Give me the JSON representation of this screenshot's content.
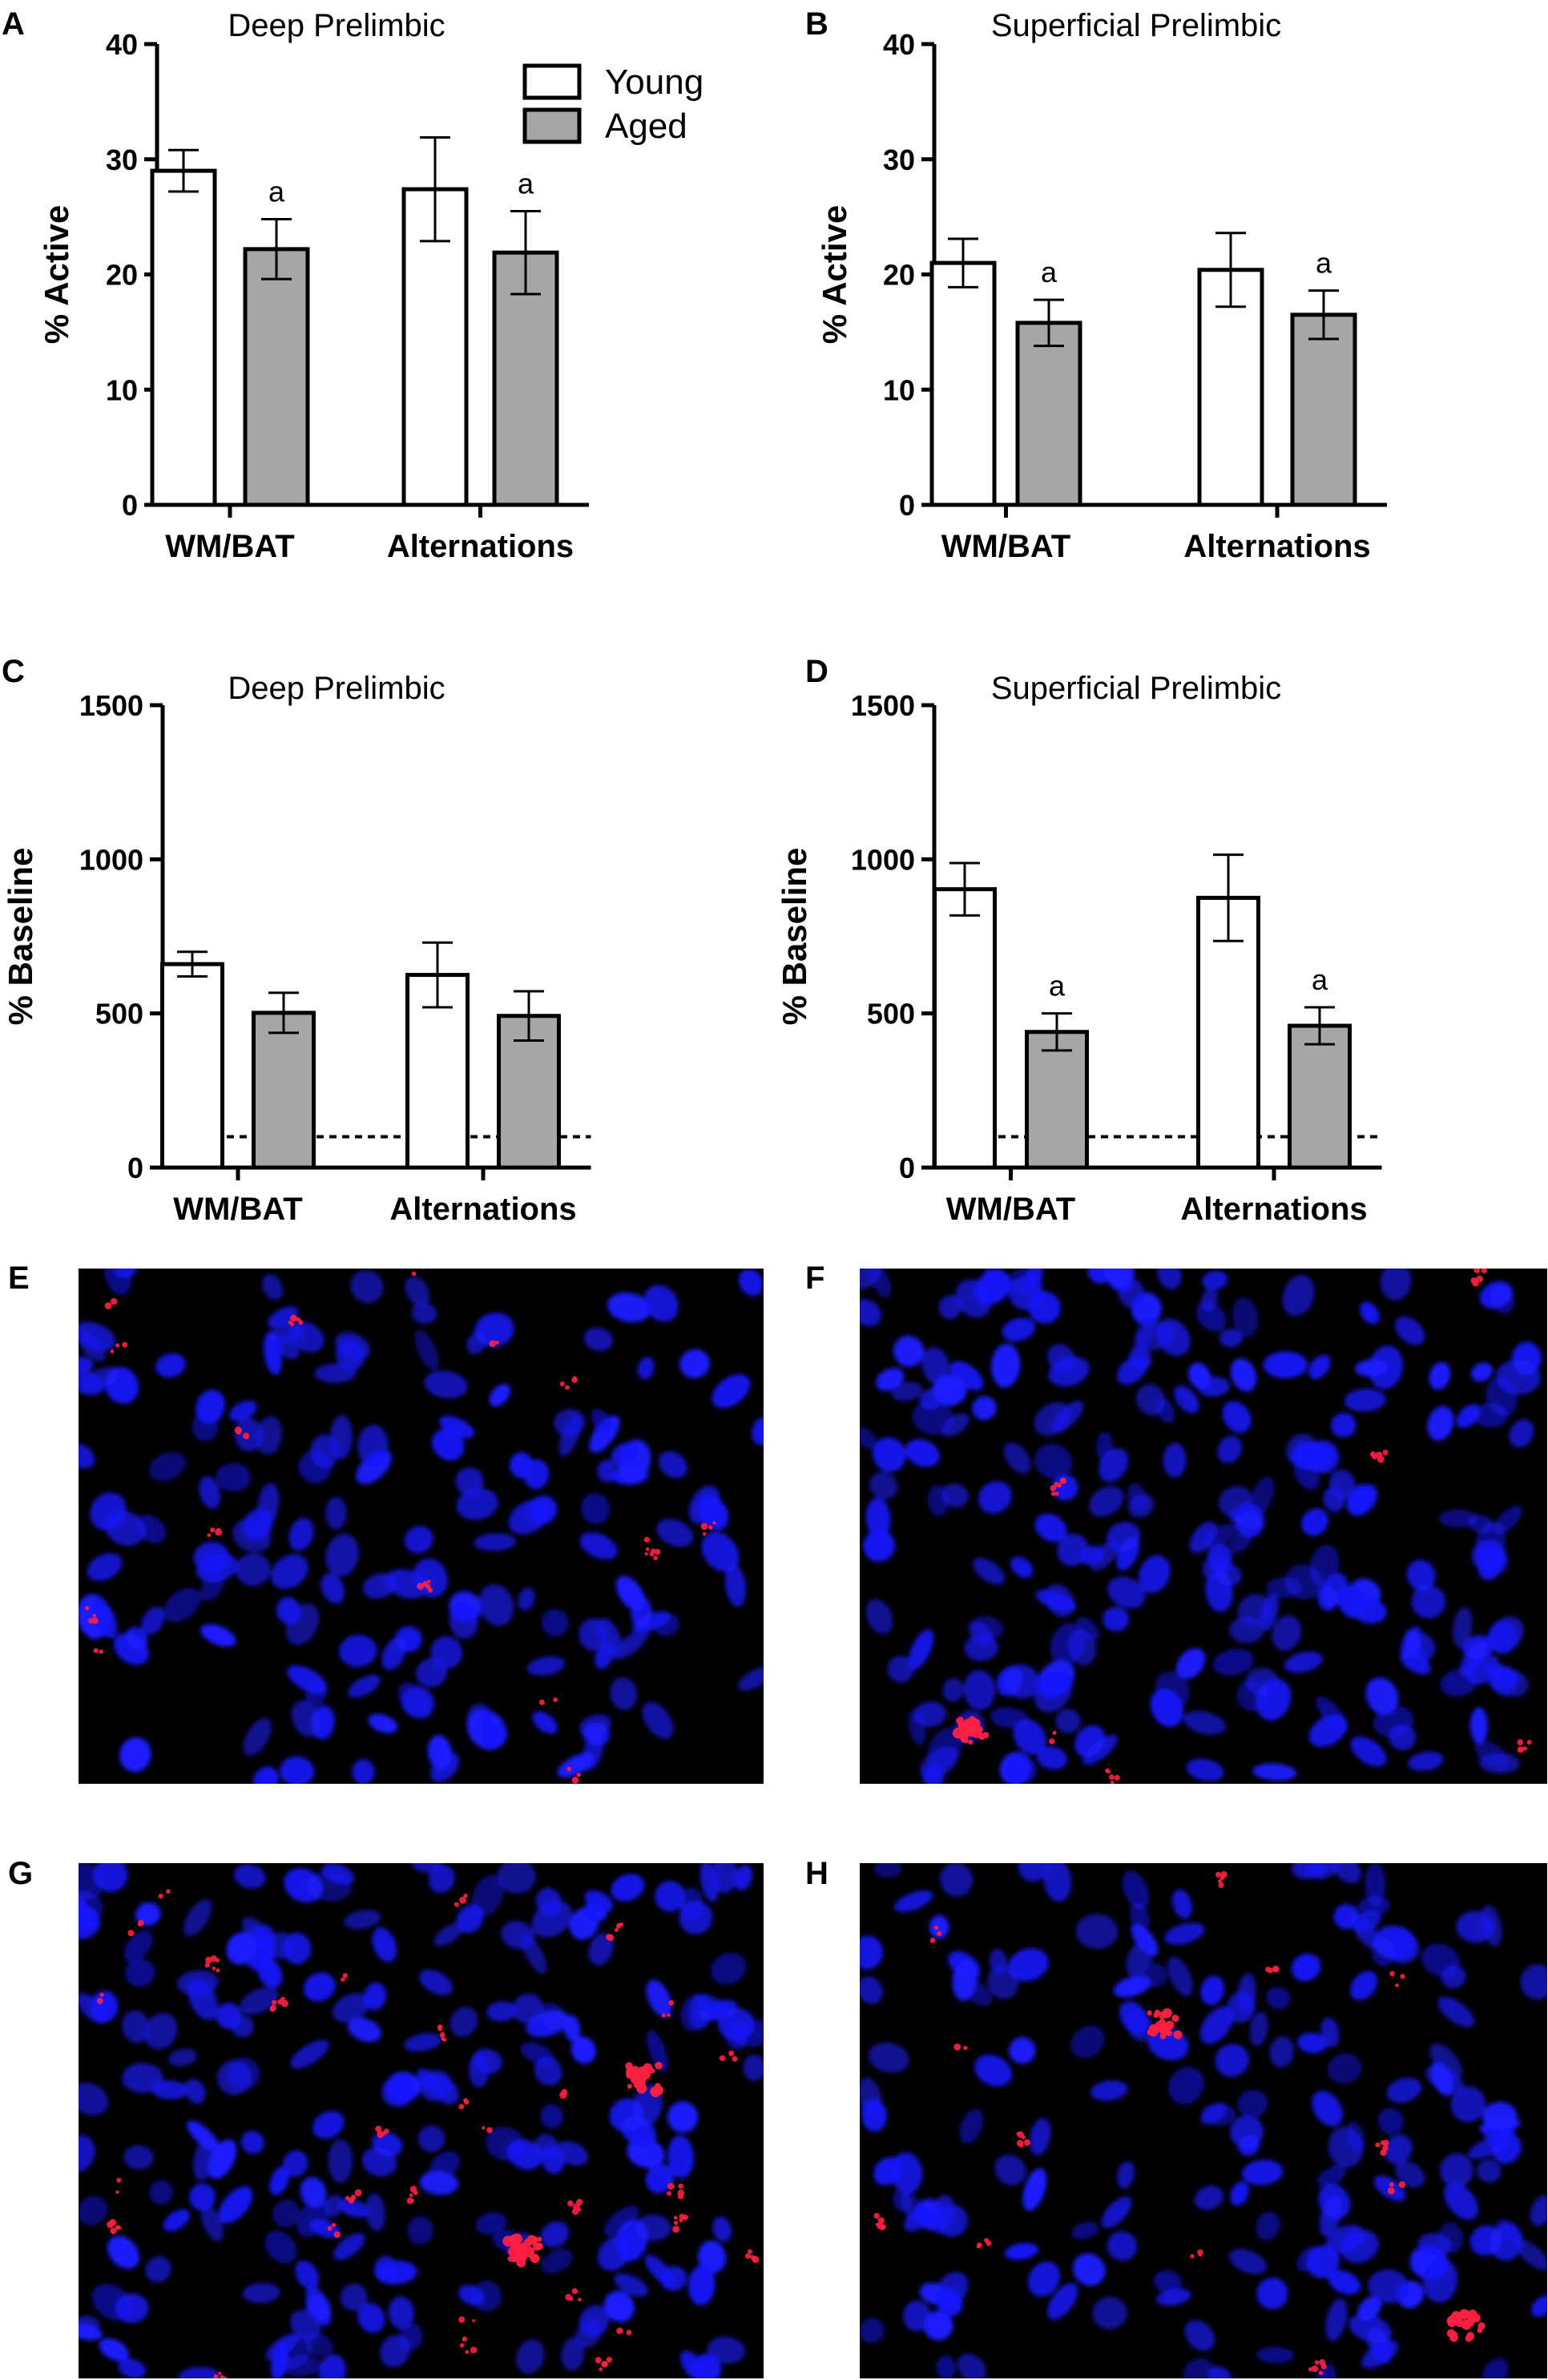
{
  "panels": {
    "A": "A",
    "B": "B",
    "C": "C",
    "D": "D",
    "E": "E",
    "F": "F",
    "G": "G",
    "H": "H"
  },
  "colors": {
    "young": "#ffffff",
    "aged": "#a6a6a6",
    "stroke": "#000000",
    "nucleus": "#1a1aff",
    "puncta": "#ff2040",
    "micro_background": "#000000"
  },
  "legend": {
    "young": "Young",
    "aged": "Aged"
  },
  "micrographs": {
    "E": {
      "description_icon": "fluorescence-micrograph-icon",
      "nuclear_stain": "blue",
      "label_stain": "red"
    },
    "F": {
      "description_icon": "fluorescence-micrograph-icon",
      "nuclear_stain": "blue",
      "label_stain": "red"
    },
    "G": {
      "description_icon": "fluorescence-micrograph-icon",
      "nuclear_stain": "blue",
      "label_stain": "red"
    },
    "H": {
      "description_icon": "fluorescence-micrograph-icon",
      "nuclear_stain": "blue",
      "label_stain": "red"
    }
  },
  "chart_data": [
    {
      "panel": "A",
      "type": "bar",
      "title": "Deep Prelimbic",
      "xlabel": "",
      "ylabel": "% Active",
      "ylim": [
        0,
        40
      ],
      "yticks": [
        "0",
        "10",
        "20",
        "30",
        "40"
      ],
      "categories": [
        "WM/BAT",
        "Alternations"
      ],
      "series": [
        {
          "name": "Young",
          "values": [
            29,
            27.4
          ],
          "errors": [
            1.8,
            4.5
          ],
          "sig": [
            "",
            ""
          ]
        },
        {
          "name": "Aged",
          "values": [
            22.2,
            21.9
          ],
          "errors": [
            2.6,
            3.6
          ],
          "sig": [
            "a",
            "a"
          ]
        }
      ],
      "legend": "top-right",
      "baseline": null,
      "grid": false
    },
    {
      "panel": "B",
      "type": "bar",
      "title": "Superficial Prelimbic",
      "xlabel": "",
      "ylabel": "% Active",
      "ylim": [
        0,
        40
      ],
      "yticks": [
        "0",
        "10",
        "20",
        "30",
        "40"
      ],
      "categories": [
        "WM/BAT",
        "Alternations"
      ],
      "series": [
        {
          "name": "Young",
          "values": [
            21,
            20.4
          ],
          "errors": [
            2.1,
            3.2
          ],
          "sig": [
            "",
            ""
          ]
        },
        {
          "name": "Aged",
          "values": [
            15.8,
            16.5
          ],
          "errors": [
            2.0,
            2.1
          ],
          "sig": [
            "a",
            "a"
          ]
        }
      ],
      "legend": null,
      "baseline": null,
      "grid": false
    },
    {
      "panel": "C",
      "type": "bar",
      "title": "Deep Prelimbic",
      "xlabel": "",
      "ylabel": "% Baseline",
      "ylim": [
        0,
        1500
      ],
      "yticks": [
        "0",
        "500",
        "1000",
        "1500"
      ],
      "categories": [
        "WM/BAT",
        "Alternations"
      ],
      "series": [
        {
          "name": "Young",
          "values": [
            660,
            625
          ],
          "errors": [
            40,
            105
          ],
          "sig": [
            "",
            ""
          ]
        },
        {
          "name": "Aged",
          "values": [
            502,
            492
          ],
          "errors": [
            65,
            80
          ],
          "sig": [
            "",
            ""
          ]
        }
      ],
      "legend": null,
      "baseline": 100,
      "grid": false
    },
    {
      "panel": "D",
      "type": "bar",
      "title": "Superficial  Prelimbic",
      "xlabel": "",
      "ylabel": "% Baseline",
      "ylim": [
        0,
        1500
      ],
      "yticks": [
        "0",
        "500",
        "1000",
        "1500"
      ],
      "categories": [
        "WM/BAT",
        "Alternations"
      ],
      "series": [
        {
          "name": "Young",
          "values": [
            903,
            875
          ],
          "errors": [
            85,
            140
          ],
          "sig": [
            "",
            ""
          ]
        },
        {
          "name": "Aged",
          "values": [
            440,
            460
          ],
          "errors": [
            60,
            60
          ],
          "sig": [
            "a",
            "a"
          ]
        }
      ],
      "legend": null,
      "baseline": 100,
      "grid": false
    }
  ]
}
